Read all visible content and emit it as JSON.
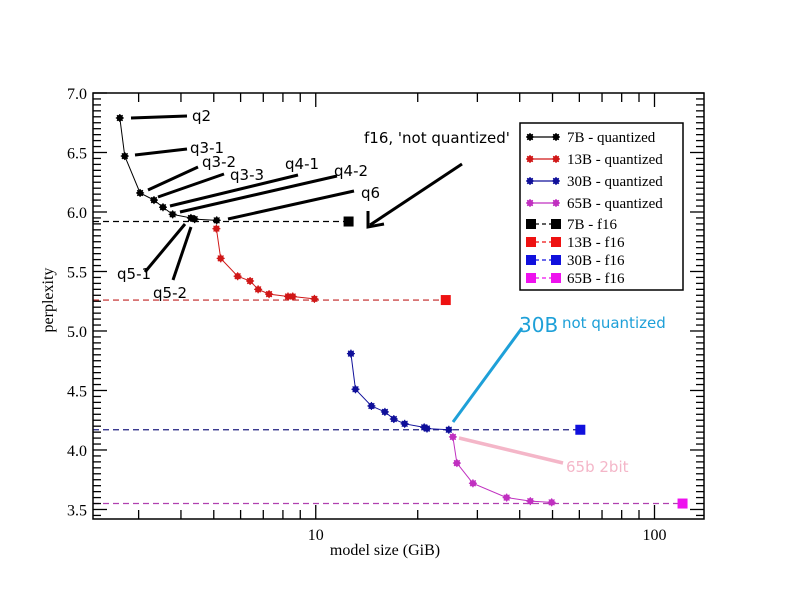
{
  "chart_data": {
    "type": "line",
    "title": "",
    "xlabel": "model size (GiB)",
    "ylabel": "perplexity",
    "xscale": "log",
    "xlim": [
      2.2,
      140
    ],
    "ylim": [
      3.42,
      7.0
    ],
    "x_ticks": [
      10,
      100
    ],
    "x_tick_labels": [
      "10",
      "100"
    ],
    "y_ticks": [
      3.5,
      4.0,
      4.5,
      5.0,
      5.5,
      6.0,
      6.5,
      7.0
    ],
    "y_tick_labels": [
      "3.5",
      "4.0",
      "4.5",
      "5.0",
      "5.5",
      "6.0",
      "6.5",
      "7.0"
    ],
    "grid": false,
    "legend_position": "top-right",
    "series": [
      {
        "name": "7B - quantized",
        "color": "#000000",
        "style": "solid-marker",
        "x": [
          2.64,
          2.73,
          3.03,
          3.33,
          3.54,
          3.78,
          4.28,
          4.39,
          5.1
        ],
        "y": [
          6.79,
          6.47,
          6.16,
          6.1,
          6.04,
          5.98,
          5.95,
          5.94,
          5.93
        ]
      },
      {
        "name": "13B - quantized",
        "color": "#d01818",
        "style": "solid-marker",
        "x": [
          5.09,
          5.24,
          5.88,
          6.4,
          6.76,
          7.28,
          8.28,
          8.55,
          9.91
        ],
        "y": [
          5.86,
          5.61,
          5.46,
          5.42,
          5.35,
          5.31,
          5.29,
          5.29,
          5.27
        ]
      },
      {
        "name": "30B - quantized",
        "color": "#10109a",
        "style": "solid-marker",
        "x": [
          12.7,
          13.1,
          14.6,
          16.0,
          17.0,
          18.3,
          20.9,
          21.3,
          24.7
        ],
        "y": [
          4.81,
          4.51,
          4.37,
          4.32,
          4.26,
          4.22,
          4.19,
          4.18,
          4.17
        ]
      },
      {
        "name": "65B - quantized",
        "color": "#c030c0",
        "style": "solid-marker",
        "x": [
          25.4,
          26.1,
          29.1,
          36.6,
          43.0,
          49.7
        ],
        "y": [
          4.11,
          3.89,
          3.72,
          3.6,
          3.57,
          3.56
        ]
      },
      {
        "name": "7B - f16",
        "color": "#000000",
        "style": "dashed-square",
        "x": [
          12.5
        ],
        "y": [
          5.92
        ]
      },
      {
        "name": "13B - f16",
        "color": "#ee1111",
        "style": "dashed-square",
        "x": [
          24.2
        ],
        "y": [
          5.26
        ]
      },
      {
        "name": "30B - f16",
        "color": "#1010dd",
        "style": "dashed-square",
        "x": [
          60.4
        ],
        "y": [
          4.17
        ]
      },
      {
        "name": "65B - f16",
        "color": "#ee11ee",
        "style": "dashed-square",
        "x": [
          121
        ],
        "y": [
          3.55
        ]
      }
    ],
    "f16_reference_lines": [
      {
        "series": "7B - f16",
        "y": 5.92,
        "color": "#000000"
      },
      {
        "series": "13B - f16",
        "y": 5.26,
        "color": "#c02020"
      },
      {
        "series": "30B - f16",
        "y": 4.17,
        "color": "#202080"
      },
      {
        "series": "65B - f16",
        "y": 3.55,
        "color": "#b040b0"
      }
    ],
    "annotations": [
      {
        "text": "q2",
        "target_series": 0,
        "target_point": 0,
        "color": "#000000"
      },
      {
        "text": "q3-1",
        "target_series": 0,
        "target_point": 1,
        "color": "#000000"
      },
      {
        "text": "q3-2",
        "target_series": 0,
        "target_point": 2,
        "color": "#000000"
      },
      {
        "text": "q3-3",
        "target_series": 0,
        "target_point": 3,
        "color": "#000000"
      },
      {
        "text": "q4-1",
        "target_series": 0,
        "target_point": 4,
        "color": "#000000"
      },
      {
        "text": "q4-2",
        "target_series": 0,
        "target_point": 5,
        "color": "#000000"
      },
      {
        "text": "q5-1",
        "target_series": 0,
        "target_point": 6,
        "color": "#000000"
      },
      {
        "text": "q5-2",
        "target_series": 0,
        "target_point": 7,
        "color": "#000000"
      },
      {
        "text": "q6",
        "target_series": 0,
        "target_point": 8,
        "color": "#000000"
      },
      {
        "text": "f16, 'not quantized'",
        "target_series": 4,
        "target_point": 0,
        "color": "#000000",
        "arrow": true
      },
      {
        "text_large": "30B",
        "text": "not quantized",
        "target_series": 2,
        "target_point": 8,
        "color": "#1ea0d8"
      },
      {
        "text": "65b 2bit",
        "target_series": 3,
        "target_point": 0,
        "color": "#f4b6c8"
      }
    ]
  }
}
